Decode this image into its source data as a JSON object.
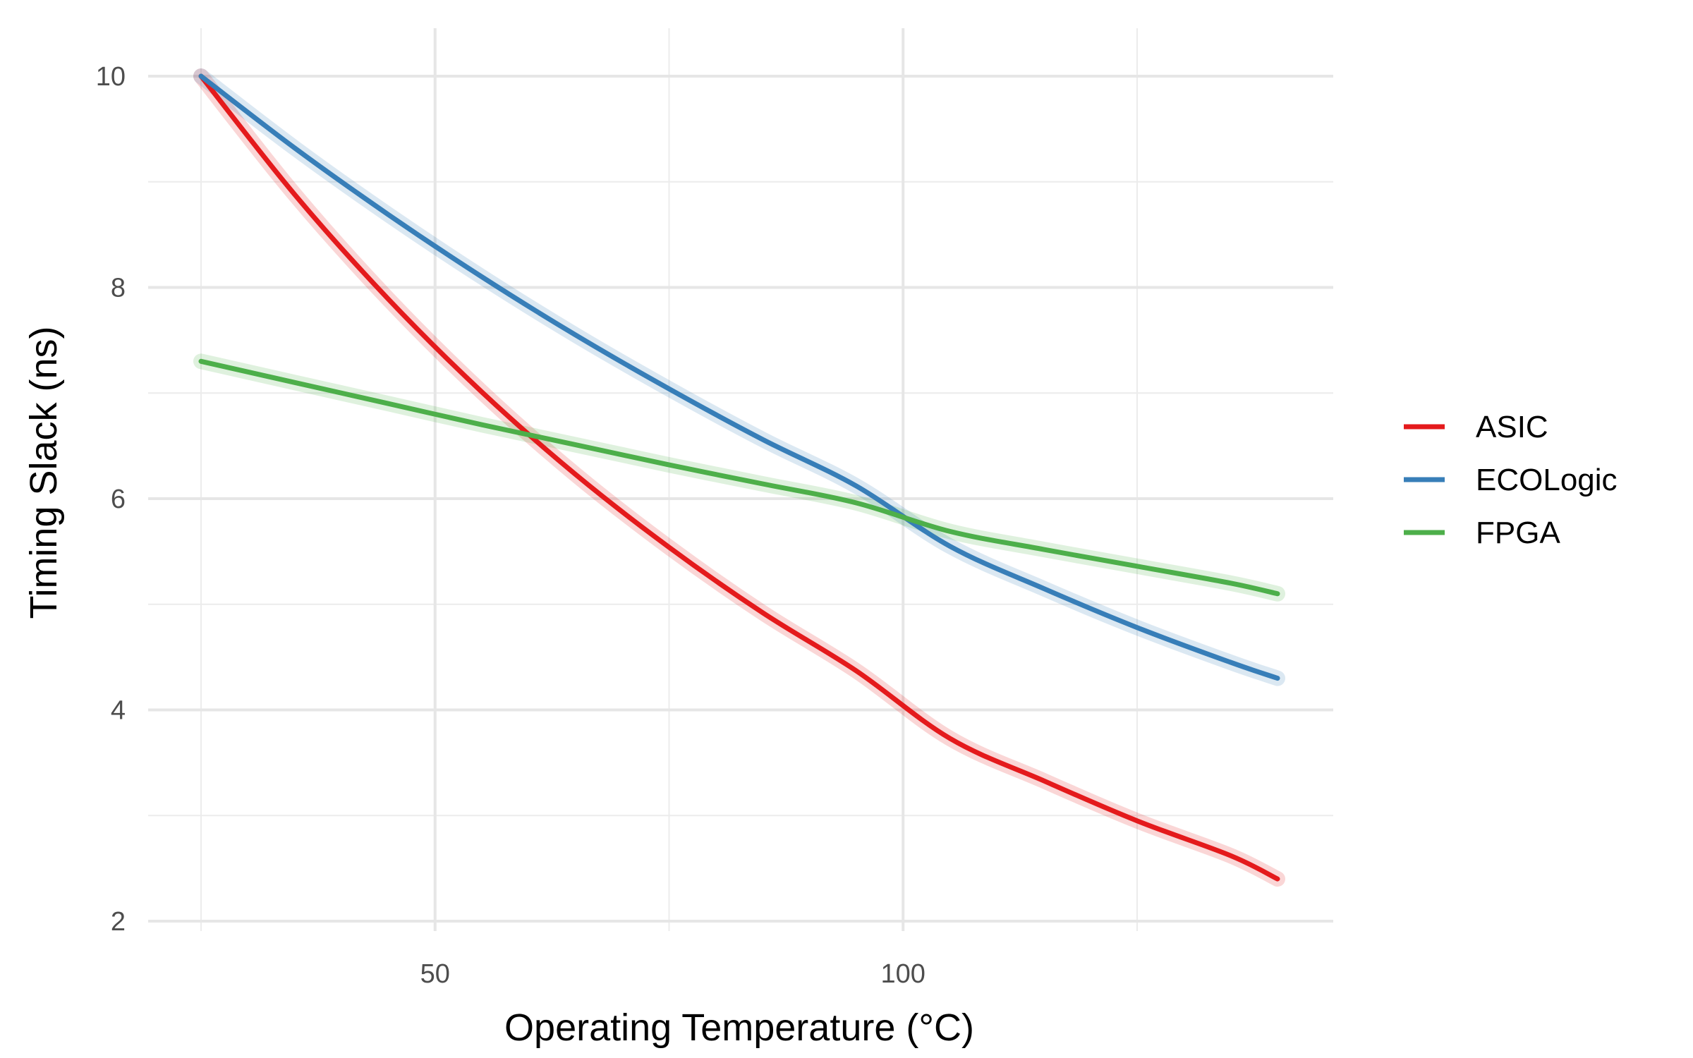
{
  "chart_data": {
    "type": "line",
    "title": "",
    "xlabel": "Operating Temperature (°C)",
    "ylabel": "Timing Slack (ns)",
    "xlim": [
      15,
      140
    ],
    "ylim": [
      2,
      10.4
    ],
    "x_ticks": [
      50,
      100
    ],
    "x_minor_ticks": [
      25,
      75,
      125
    ],
    "y_ticks": [
      2,
      4,
      6,
      8,
      10
    ],
    "y_minor_ticks": [
      3,
      5,
      7,
      9
    ],
    "grid": true,
    "legend_position": "right",
    "x": [
      25,
      35,
      45,
      55,
      65,
      75,
      85,
      95,
      105,
      115,
      125,
      135
    ],
    "series": [
      {
        "name": "ASIC",
        "color": "#E41A1C",
        "values": [
          10.0,
          8.88,
          7.89,
          7.01,
          6.23,
          5.54,
          4.92,
          4.37,
          3.73,
          3.33,
          2.95,
          2.62
        ]
      },
      {
        "name": "ECOLogic",
        "color": "#377EB8",
        "values": [
          10.0,
          9.32,
          8.69,
          8.1,
          7.55,
          7.04,
          6.56,
          6.12,
          5.55,
          5.15,
          4.78,
          4.45
        ]
      },
      {
        "name": "FPGA",
        "color": "#4DAF4A",
        "values": [
          7.3,
          7.1,
          6.9,
          6.7,
          6.51,
          6.32,
          6.14,
          5.96,
          5.69,
          5.52,
          5.36,
          5.2
        ]
      }
    ],
    "x_end": 140,
    "end_values": [
      2.4,
      4.3,
      5.1
    ]
  }
}
